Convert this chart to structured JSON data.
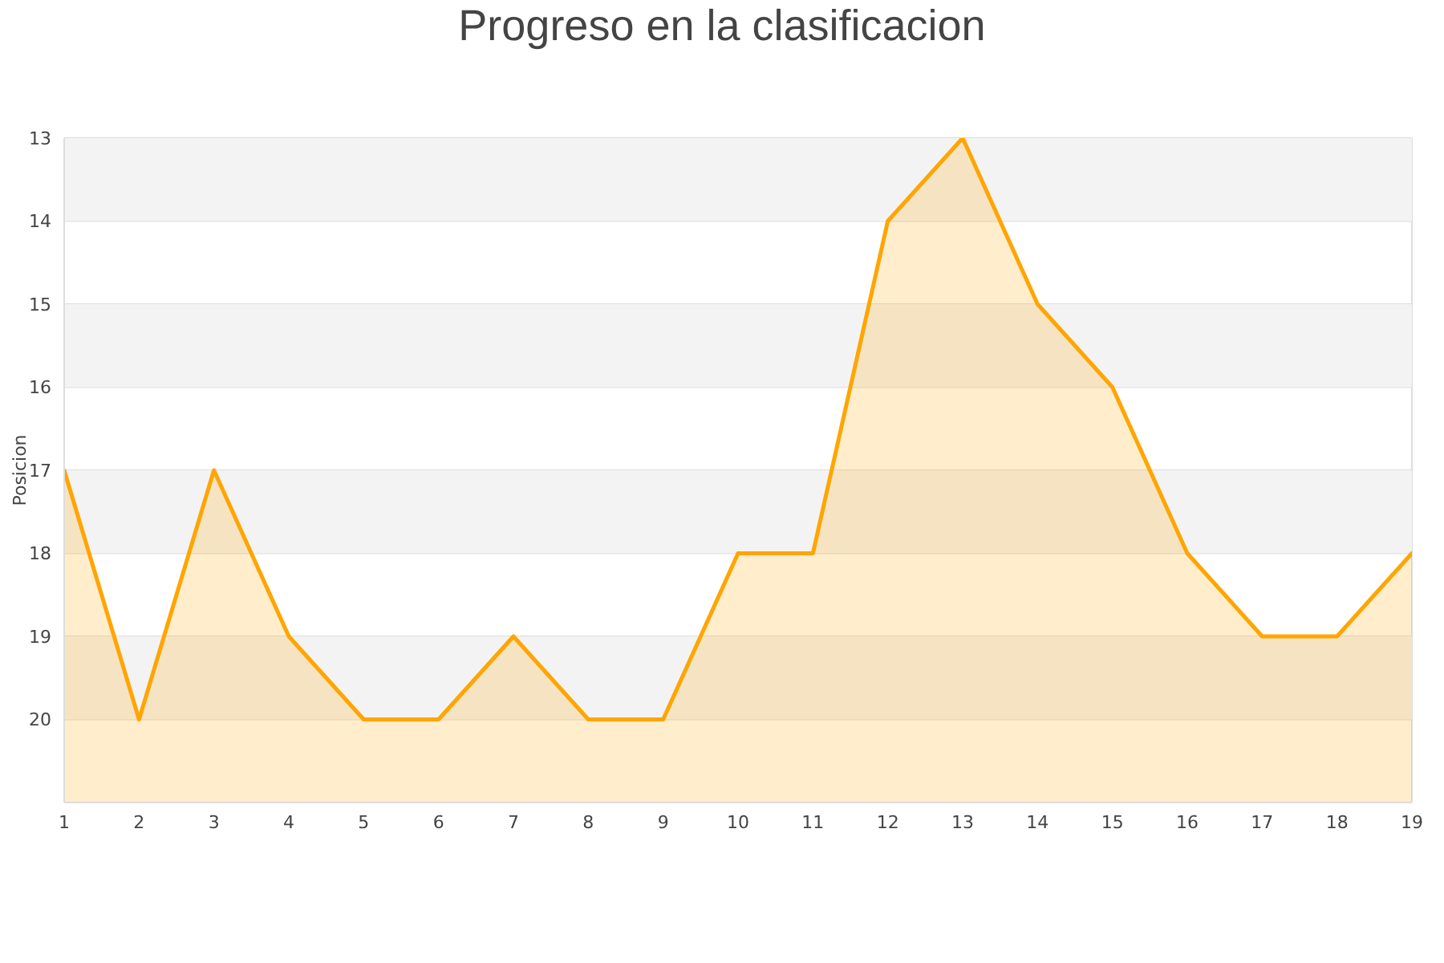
{
  "chart_data": {
    "type": "line",
    "title": "Progreso en la clasificacion",
    "ylabel": "Posicion",
    "x": [
      1,
      2,
      3,
      4,
      5,
      6,
      7,
      8,
      9,
      10,
      11,
      12,
      13,
      14,
      15,
      16,
      17,
      18,
      19
    ],
    "series": [
      {
        "color": "#ffa500",
        "values": [
          17,
          20,
          17,
          19,
          20,
          20,
          19,
          20,
          20,
          18,
          18,
          14,
          13,
          15,
          16,
          18,
          19,
          19,
          18
        ],
        "lower": [
          17,
          20,
          17,
          19,
          20,
          20,
          19,
          20,
          20,
          18,
          18,
          14,
          13,
          15,
          16,
          18,
          19,
          19,
          18
        ],
        "upper": [
          21,
          21,
          21,
          21,
          21,
          21,
          21,
          21,
          21,
          21,
          21,
          21,
          21,
          21,
          21,
          21,
          21,
          21,
          21
        ]
      }
    ],
    "xlim": [
      1,
      19
    ],
    "xticks": [
      1,
      2,
      3,
      4,
      5,
      6,
      7,
      8,
      9,
      10,
      11,
      12,
      13,
      14,
      15,
      16,
      17,
      18,
      19
    ],
    "ylim": [
      21,
      13
    ],
    "yticks": [
      13,
      14,
      15,
      16,
      17,
      18,
      19,
      20
    ],
    "grid": "y",
    "bands": [
      {
        "axis": "y",
        "from": 13,
        "to": 14,
        "color": "#f3f3f3"
      },
      {
        "axis": "y",
        "from": 15,
        "to": 16,
        "color": "#f3f3f3"
      },
      {
        "axis": "y",
        "from": 17,
        "to": 18,
        "color": "#f3f3f3"
      },
      {
        "axis": "y",
        "from": 19,
        "to": 20,
        "color": "#f3f3f3"
      }
    ]
  }
}
